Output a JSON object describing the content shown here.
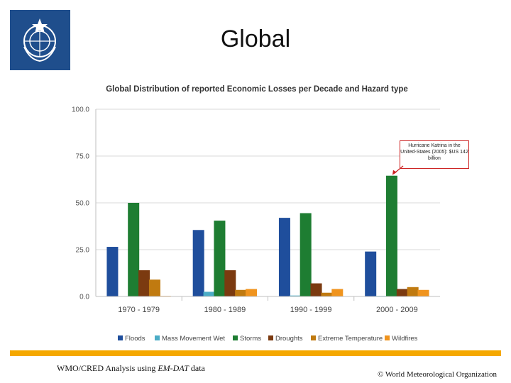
{
  "slide": {
    "title": "Global",
    "footer_source_prefix": "WMO/CRED Analysis using ",
    "footer_source_em": "EM-DAT",
    "footer_source_suffix": " data",
    "copyright": "© World Meteorological Organization"
  },
  "colors": {
    "logo_bg": "#1f4e8c",
    "footer_bar": "#f5a800"
  },
  "chart_data": {
    "type": "bar",
    "title": "Global Distribution of reported Economic Losses per Decade and Hazard type",
    "xlabel": "",
    "ylabel": "",
    "ylim": [
      0,
      100
    ],
    "yticks": [
      "0.0",
      "25.0",
      "50.0",
      "75.0",
      "100.0"
    ],
    "grid": true,
    "legend": "bottom",
    "categories": [
      "1970 - 1979",
      "1980 - 1989",
      "1990 - 1999",
      "2000 - 2009"
    ],
    "series": [
      {
        "name": "Floods",
        "color": "#1f4e9c",
        "values": [
          26.5,
          35.5,
          42,
          24
        ]
      },
      {
        "name": "Mass Movement Wet",
        "color": "#4bacc6",
        "values": [
          0.2,
          2.5,
          0.5,
          0.3
        ]
      },
      {
        "name": "Storms",
        "color": "#1e7d32",
        "values": [
          50,
          40.5,
          44.5,
          64.5
        ]
      },
      {
        "name": "Droughts",
        "color": "#7b3a10",
        "values": [
          14,
          14,
          7,
          4
        ]
      },
      {
        "name": "Extreme Temperature",
        "color": "#c07a10",
        "values": [
          9,
          3.5,
          2,
          5
        ]
      },
      {
        "name": "Wildfires",
        "color": "#f0941e",
        "values": [
          0.3,
          4,
          4,
          3.5
        ]
      }
    ],
    "annotation": {
      "text": "Hurricane Katrina in the United-States (2005): $US 142 billion",
      "category": "2000 - 2009",
      "series": "Storms",
      "border_color": "#cc2222"
    }
  }
}
